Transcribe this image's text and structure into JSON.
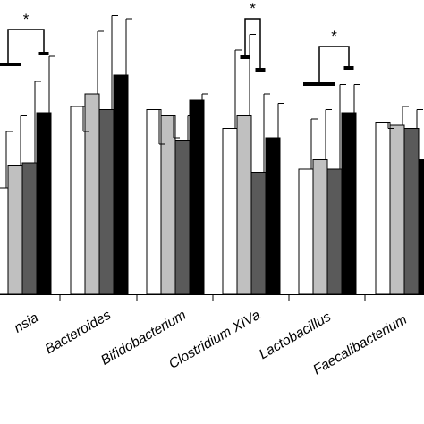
{
  "chart_data": {
    "type": "bar",
    "title": "",
    "xlabel": "",
    "ylabel": "",
    "ylim": [
      0,
      1.0
    ],
    "grid": false,
    "legend": "none",
    "categories": [
      "Akkermansia",
      "Bacteroides",
      "Bifidobacterium",
      "Clostridium XIVa",
      "Lactobacillus",
      "Faecalibacterium"
    ],
    "category_labels_visible": [
      "nsia",
      "Bacteroides",
      "Bifidobacterium",
      "Clostridium XIVa",
      "Lactobacillus",
      "Faecalibacterium"
    ],
    "series": [
      {
        "color": "#ffffff",
        "values": [
          0.34,
          0.6,
          0.59,
          0.53,
          0.4,
          0.55
        ],
        "errors": [
          0.52,
          0.52,
          0.48,
          0.78,
          0.56,
          0.53
        ]
      },
      {
        "color": "#c0c0c0",
        "values": [
          0.41,
          0.64,
          0.57,
          0.57,
          0.43,
          0.54
        ],
        "errors": [
          0.57,
          0.84,
          0.5,
          0.83,
          0.59,
          0.6
        ]
      },
      {
        "color": "#5a5a5a",
        "values": [
          0.42,
          0.59,
          0.49,
          0.39,
          0.4,
          0.53
        ],
        "errors": [
          0.68,
          0.89,
          0.57,
          0.64,
          0.67,
          0.59
        ]
      },
      {
        "color": "#000000",
        "values": [
          0.58,
          0.7,
          0.62,
          0.5,
          0.58,
          0.43
        ],
        "errors": [
          0.76,
          0.88,
          0.64,
          0.61,
          0.67,
          0.54
        ]
      }
    ],
    "significance": [
      {
        "label": "*",
        "category": "Akkermansia",
        "between": [
          0,
          3
        ]
      },
      {
        "label": "*",
        "category": "Clostridium XIVa",
        "between": [
          1,
          2
        ]
      },
      {
        "label": "*",
        "category": "Lactobacillus",
        "between": [
          0,
          3
        ]
      }
    ]
  }
}
